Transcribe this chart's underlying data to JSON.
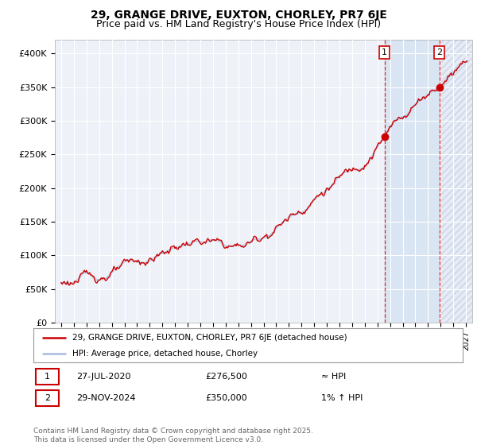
{
  "title": "29, GRANGE DRIVE, EUXTON, CHORLEY, PR7 6JE",
  "subtitle": "Price paid vs. HM Land Registry's House Price Index (HPI)",
  "title_fontsize": 10,
  "subtitle_fontsize": 9,
  "ylim": [
    0,
    420000
  ],
  "yticks": [
    0,
    50000,
    100000,
    150000,
    200000,
    250000,
    300000,
    350000,
    400000
  ],
  "ytick_labels": [
    "£0",
    "£50K",
    "£100K",
    "£150K",
    "£200K",
    "£250K",
    "£300K",
    "£350K",
    "£400K"
  ],
  "line_color": "#cc0000",
  "hpi_color": "#aabbdd",
  "background_color": "#ffffff",
  "plot_bg_color": "#eef2f8",
  "grid_color": "#ffffff",
  "shade1_color": "#dde8f5",
  "shade2_color": "#e8edf5",
  "marker1_x": 2020.57,
  "marker1_y": 276500,
  "marker1_label": "1",
  "marker2_x": 2024.91,
  "marker2_y": 350000,
  "marker2_label": "2",
  "legend_line1": "29, GRANGE DRIVE, EUXTON, CHORLEY, PR7 6JE (detached house)",
  "legend_line2": "HPI: Average price, detached house, Chorley",
  "annotation1_date": "27-JUL-2020",
  "annotation1_price": "£276,500",
  "annotation1_hpi": "≈ HPI",
  "annotation2_date": "29-NOV-2024",
  "annotation2_price": "£350,000",
  "annotation2_hpi": "1% ↑ HPI",
  "footer": "Contains HM Land Registry data © Crown copyright and database right 2025.\nThis data is licensed under the Open Government Licence v3.0.",
  "xmin": 1994.5,
  "xmax": 2027.5
}
